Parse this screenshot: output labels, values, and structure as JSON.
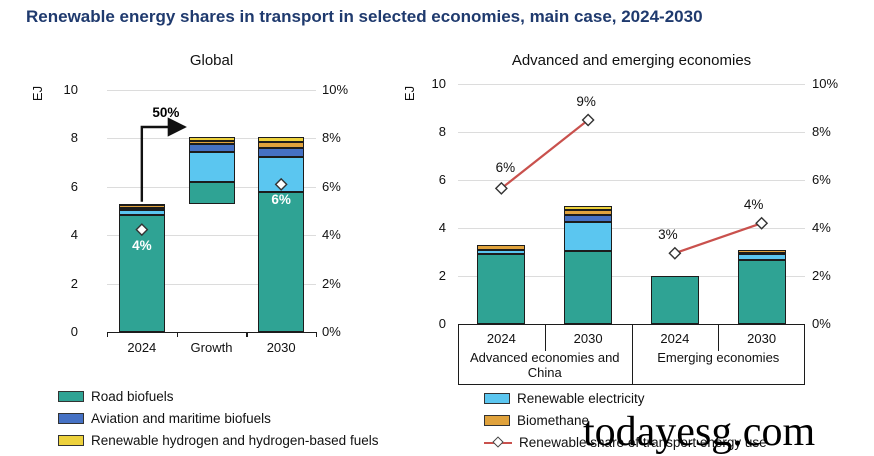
{
  "title": "Renewable energy shares in transport in selected economies, main case, 2024-2030",
  "watermark": "todayesg.com",
  "colors": {
    "road": "#2FA394",
    "electricity": "#5BC6F0",
    "aviation": "#4571C4",
    "biomethane": "#E0A23C",
    "hydrogen": "#EDD13C",
    "share_line": "#C9514D",
    "diamond_fill": "#FFFFFF",
    "diamond_stroke": "#333333",
    "title_navy": "#1F3A6E",
    "gridline": "#DCDCDC",
    "bar_border": "#1C1C1C"
  },
  "legend_left": {
    "items": [
      {
        "key": "road",
        "label": "Road biofuels"
      },
      {
        "key": "aviation",
        "label": "Aviation and maritime biofuels"
      },
      {
        "key": "hydrogen",
        "label": "Renewable hydrogen and hydrogen-based fuels"
      }
    ]
  },
  "legend_right": {
    "items": [
      {
        "key": "electricity",
        "label": "Renewable electricity"
      },
      {
        "key": "biomethane",
        "label": "Biomethane"
      },
      {
        "key": "share",
        "label": "Renewable share of transport energy use"
      }
    ]
  },
  "chart_data": [
    {
      "type": "bar",
      "title": "Global",
      "ylabel": "EJ",
      "ylim": [
        0,
        10
      ],
      "yticks": [
        0,
        2,
        4,
        6,
        8,
        10
      ],
      "y2ticks": [
        "0%",
        "2%",
        "4%",
        "6%",
        "8%",
        "10%"
      ],
      "grid": true,
      "categories": [
        "2024",
        "Growth",
        "2030"
      ],
      "bar_base": [
        0,
        5.3,
        0
      ],
      "series": [
        {
          "name": "Road biofuels",
          "key": "road",
          "values": [
            4.85,
            0.9,
            5.8
          ]
        },
        {
          "name": "Renewable electricity",
          "key": "electricity",
          "values": [
            0.2,
            1.25,
            1.45
          ]
        },
        {
          "name": "Aviation and maritime biofuels",
          "key": "aviation",
          "values": [
            0.08,
            0.3,
            0.35
          ]
        },
        {
          "name": "Biomethane",
          "key": "biomethane",
          "values": [
            0.12,
            0.15,
            0.25
          ]
        },
        {
          "name": "Renewable hydrogen and hydrogen-based fuels",
          "key": "hydrogen",
          "values": [
            0.05,
            0.15,
            0.2
          ]
        }
      ],
      "totals": [
        5.3,
        8.05,
        8.05
      ],
      "share_points": [
        {
          "category": "2024",
          "label": "4%",
          "ej": 4.23
        },
        {
          "category": "2030",
          "label": "6%",
          "ej": 6.1
        }
      ],
      "growth_annotation": "50%"
    },
    {
      "type": "bar+line",
      "title": "Advanced and emerging economies",
      "ylabel": "EJ",
      "ylim": [
        0,
        10
      ],
      "yticks": [
        0,
        2,
        4,
        6,
        8,
        10
      ],
      "y2ticks": [
        "0%",
        "2%",
        "4%",
        "6%",
        "8%",
        "10%"
      ],
      "grid": true,
      "groups": [
        {
          "label": "Advanced economies and China",
          "categories": [
            "2024",
            "2030"
          ]
        },
        {
          "label": "Emerging economies",
          "categories": [
            "2024",
            "2030"
          ]
        }
      ],
      "categories": [
        "2024",
        "2030",
        "2024",
        "2030"
      ],
      "series": [
        {
          "name": "Road biofuels",
          "key": "road",
          "values": [
            2.9,
            3.05,
            2.0,
            2.65
          ]
        },
        {
          "name": "Renewable electricity",
          "key": "electricity",
          "values": [
            0.2,
            1.2,
            0,
            0.25
          ]
        },
        {
          "name": "Aviation and maritime biofuels",
          "key": "aviation",
          "values": [
            0,
            0.3,
            0,
            0.07
          ]
        },
        {
          "name": "Biomethane",
          "key": "biomethane",
          "values": [
            0.2,
            0.2,
            0,
            0.13
          ]
        },
        {
          "name": "Renewable hydrogen and hydrogen-based fuels",
          "key": "hydrogen",
          "values": [
            0,
            0.15,
            0,
            0
          ]
        }
      ],
      "totals": [
        3.3,
        4.9,
        2.0,
        3.1
      ],
      "share_lines": [
        {
          "group": "Advanced economies and China",
          "points": [
            {
              "category": "2024",
              "label": "6%",
              "ej": 5.65
            },
            {
              "category": "2030",
              "label": "9%",
              "ej": 8.5
            }
          ]
        },
        {
          "group": "Emerging economies",
          "points": [
            {
              "category": "2024",
              "label": "3%",
              "ej": 2.95
            },
            {
              "category": "2030",
              "label": "4%",
              "ej": 4.2
            }
          ]
        }
      ]
    }
  ]
}
